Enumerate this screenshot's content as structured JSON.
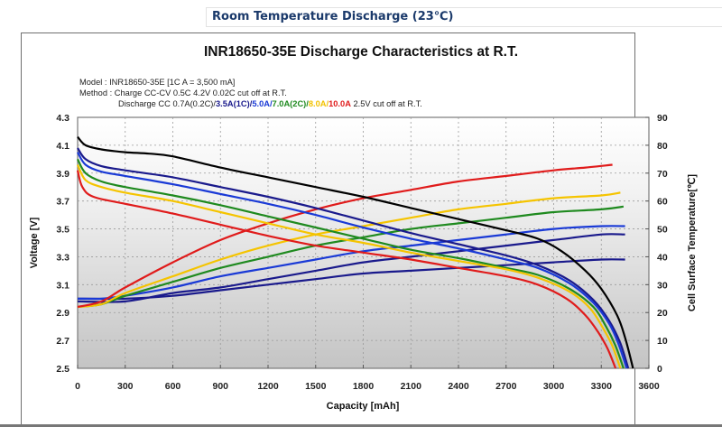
{
  "page": {
    "section_title": "Room Temperature Discharge (23℃)"
  },
  "info": {
    "model_line": "Model : INR18650-35E  [1C A = 3,500 mA]",
    "method_line": "Method : Charge CC-CV 0.5C 4.2V 0.02C cut off at R.T.",
    "discharge_prefix": "Discharge CC ",
    "discharge_parts": [
      {
        "text": "0.7A(0.2C)/",
        "color": "#222222"
      },
      {
        "text": "3.5A(1C)/",
        "color": "#1a1a8c"
      },
      {
        "text": "5.0A/",
        "color": "#1a3ad6"
      },
      {
        "text": "7.0A(2C)/",
        "color": "#1f8a1f"
      },
      {
        "text": "8.0A/",
        "color": "#f2c200"
      },
      {
        "text": "10.0A",
        "color": "#e01b1b"
      }
    ],
    "discharge_suffix": "  2.5V cut off at R.T."
  },
  "chart_data": {
    "type": "line",
    "title": "INR18650-35E Discharge Characteristics at R.T.",
    "xlabel": "Capacity [mAh]",
    "ylabel": "Voltage [V]",
    "y2label": "Cell Surface Temperature[℃]",
    "xlim": [
      0,
      3600
    ],
    "ylim": [
      2.5,
      4.3
    ],
    "y2lim": [
      0,
      90
    ],
    "grid": true,
    "x_ticks": [
      "0",
      "300",
      "600",
      "900",
      "1200",
      "1500",
      "1800",
      "2100",
      "2400",
      "2700",
      "3000",
      "3300",
      "3600"
    ],
    "y_ticks": [
      "2.5",
      "2.7",
      "2.9",
      "3.1",
      "3.3",
      "3.5",
      "3.7",
      "3.9",
      "4.1",
      "4.3"
    ],
    "y2_ticks": [
      "0",
      "10",
      "20",
      "30",
      "40",
      "50",
      "60",
      "70",
      "80",
      "90"
    ],
    "voltage_series": [
      {
        "name": "0.7A(0.2C)",
        "color": "#000000",
        "x": [
          0,
          50,
          150,
          300,
          450,
          600,
          900,
          1200,
          1500,
          1800,
          2100,
          2400,
          2700,
          2900,
          3050,
          3200,
          3300,
          3400,
          3450,
          3500
        ],
        "y": [
          4.16,
          4.1,
          4.07,
          4.05,
          4.04,
          4.02,
          3.94,
          3.87,
          3.8,
          3.73,
          3.65,
          3.57,
          3.49,
          3.43,
          3.34,
          3.2,
          3.07,
          2.88,
          2.72,
          2.5
        ]
      },
      {
        "name": "3.5A(1C)",
        "color": "#1a1a8c",
        "x": [
          0,
          50,
          150,
          300,
          600,
          900,
          1200,
          1500,
          1800,
          2100,
          2400,
          2700,
          2900,
          3100,
          3250,
          3350,
          3420,
          3470
        ],
        "y": [
          4.08,
          4.0,
          3.95,
          3.92,
          3.87,
          3.8,
          3.73,
          3.65,
          3.56,
          3.47,
          3.39,
          3.31,
          3.24,
          3.13,
          2.99,
          2.84,
          2.68,
          2.5
        ]
      },
      {
        "name": "5.0A",
        "color": "#1a3ad6",
        "x": [
          0,
          50,
          150,
          300,
          600,
          900,
          1200,
          1500,
          1800,
          2100,
          2400,
          2700,
          2900,
          3100,
          3250,
          3350,
          3410,
          3460
        ],
        "y": [
          4.05,
          3.96,
          3.91,
          3.88,
          3.82,
          3.75,
          3.68,
          3.6,
          3.51,
          3.43,
          3.36,
          3.28,
          3.22,
          3.11,
          2.97,
          2.82,
          2.67,
          2.5
        ]
      },
      {
        "name": "7.0A(2C)",
        "color": "#1f8a1f",
        "x": [
          0,
          50,
          150,
          300,
          600,
          900,
          1200,
          1500,
          1800,
          2100,
          2400,
          2700,
          2900,
          3100,
          3250,
          3330,
          3390,
          3440
        ],
        "y": [
          4.0,
          3.9,
          3.84,
          3.8,
          3.74,
          3.67,
          3.59,
          3.51,
          3.43,
          3.35,
          3.29,
          3.22,
          3.17,
          3.07,
          2.94,
          2.8,
          2.66,
          2.5
        ]
      },
      {
        "name": "8.0A",
        "color": "#f5c400",
        "x": [
          0,
          50,
          150,
          300,
          600,
          900,
          1200,
          1500,
          1800,
          2100,
          2400,
          2700,
          2900,
          3100,
          3230,
          3310,
          3370,
          3420
        ],
        "y": [
          3.96,
          3.85,
          3.8,
          3.76,
          3.7,
          3.62,
          3.54,
          3.46,
          3.4,
          3.33,
          3.27,
          3.21,
          3.15,
          3.05,
          2.93,
          2.79,
          2.66,
          2.5
        ]
      },
      {
        "name": "10.0A",
        "color": "#e01b1b",
        "x": [
          0,
          30,
          100,
          300,
          600,
          900,
          1200,
          1500,
          1800,
          2100,
          2400,
          2700,
          2900,
          3080,
          3200,
          3280,
          3340,
          3390
        ],
        "y": [
          3.92,
          3.8,
          3.73,
          3.68,
          3.61,
          3.53,
          3.45,
          3.38,
          3.33,
          3.28,
          3.22,
          3.16,
          3.1,
          3.0,
          2.88,
          2.76,
          2.64,
          2.5
        ]
      }
    ],
    "temperature_series": [
      {
        "name": "0.7A(0.2C) temp",
        "color": "#1a1a8c",
        "x": [
          0,
          300,
          600,
          900,
          1200,
          1500,
          1800,
          2100,
          2400,
          2700,
          3000,
          3300,
          3450
        ],
        "y": [
          25,
          25,
          26,
          28,
          30,
          32,
          34,
          35,
          36,
          37,
          38,
          39,
          39
        ]
      },
      {
        "name": "3.5A(1C) temp",
        "color": "#1a1a8c",
        "x": [
          0,
          300,
          600,
          900,
          1200,
          1500,
          1800,
          2100,
          2400,
          2700,
          3000,
          3300,
          3450
        ],
        "y": [
          24,
          24,
          27,
          29,
          32,
          35,
          38,
          40,
          42,
          44,
          46,
          48,
          48
        ]
      },
      {
        "name": "5.0A temp",
        "color": "#1a3ad6",
        "x": [
          0,
          150,
          300,
          600,
          900,
          1200,
          1500,
          1800,
          2100,
          2400,
          2700,
          3000,
          3300,
          3450
        ],
        "y": [
          25,
          25,
          26,
          29,
          33,
          36,
          39,
          42,
          44,
          46,
          48,
          50,
          51,
          51
        ]
      },
      {
        "name": "7.0A(2C) temp",
        "color": "#1f8a1f",
        "x": [
          0,
          150,
          300,
          600,
          900,
          1200,
          1500,
          1800,
          2100,
          2400,
          2700,
          3000,
          3300,
          3440
        ],
        "y": [
          22,
          23,
          26,
          31,
          36,
          40,
          44,
          47,
          50,
          52,
          54,
          56,
          57,
          58
        ]
      },
      {
        "name": "8.0A temp",
        "color": "#f5c400",
        "x": [
          0,
          150,
          300,
          600,
          900,
          1200,
          1500,
          1800,
          2100,
          2400,
          2700,
          3000,
          3300,
          3420
        ],
        "y": [
          22,
          23,
          27,
          33,
          39,
          44,
          48,
          51,
          54,
          57,
          59,
          61,
          62,
          63
        ]
      },
      {
        "name": "10.0A temp",
        "color": "#e01b1b",
        "x": [
          0,
          150,
          300,
          600,
          900,
          1200,
          1500,
          1800,
          2100,
          2400,
          2700,
          3000,
          3200,
          3370
        ],
        "y": [
          22,
          24,
          29,
          38,
          46,
          52,
          57,
          61,
          64,
          67,
          69,
          71,
          72,
          73
        ]
      }
    ]
  }
}
